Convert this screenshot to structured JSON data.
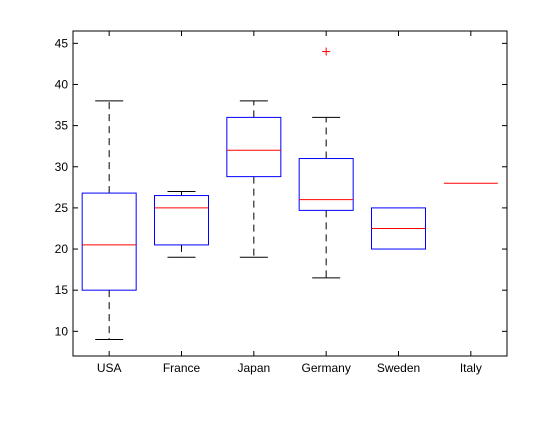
{
  "chart_data": {
    "type": "boxplot",
    "title": "",
    "xlabel": "",
    "ylabel": "",
    "categories": [
      "USA",
      "France",
      "Japan",
      "Germany",
      "Sweden",
      "Italy"
    ],
    "boxes": [
      {
        "category": "USA",
        "min": 9,
        "q1": 15,
        "median": 20.5,
        "q3": 26.8,
        "max": 38,
        "outliers": []
      },
      {
        "category": "France",
        "min": 19,
        "q1": 20.5,
        "median": 25,
        "q3": 26.5,
        "max": 27,
        "outliers": []
      },
      {
        "category": "Japan",
        "min": 19,
        "q1": 28.8,
        "median": 32,
        "q3": 36,
        "max": 38,
        "outliers": []
      },
      {
        "category": "Germany",
        "min": 16.5,
        "q1": 24.7,
        "median": 26,
        "q3": 31,
        "max": 36,
        "outliers": [
          44
        ]
      },
      {
        "category": "Sweden",
        "min": 20,
        "q1": 20,
        "median": 22.5,
        "q3": 25,
        "max": 25,
        "outliers": []
      },
      {
        "category": "Italy",
        "min": 28,
        "q1": 28,
        "median": 28,
        "q3": 28,
        "max": 28,
        "outliers": []
      }
    ],
    "ylim": [
      7,
      46.5
    ],
    "yticks": [
      10,
      15,
      20,
      25,
      30,
      35,
      40,
      45
    ],
    "grid": false,
    "legend": "none",
    "colors": {
      "box": "#0000ff",
      "median": "#ff0000",
      "whisker": "#000000",
      "outlier": "#ff0000",
      "axes": "#000000"
    }
  }
}
